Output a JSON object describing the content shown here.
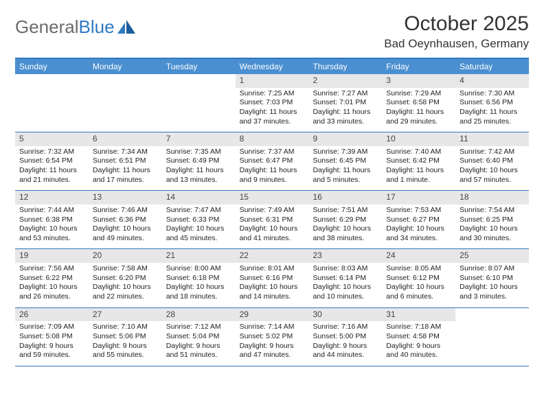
{
  "logo": {
    "text_a": "General",
    "text_b": "Blue"
  },
  "title": "October 2025",
  "location": "Bad Oeynhausen, Germany",
  "colors": {
    "header_band": "#4a8fd0",
    "daynum_bg": "#e7e7e7",
    "rule": "#2f78c2",
    "logo_gray": "#6b6b6b",
    "logo_blue": "#2f78c2",
    "text": "#222222",
    "bg": "#ffffff"
  },
  "day_names": [
    "Sunday",
    "Monday",
    "Tuesday",
    "Wednesday",
    "Thursday",
    "Friday",
    "Saturday"
  ],
  "weeks": [
    [
      {
        "empty": true
      },
      {
        "empty": true
      },
      {
        "empty": true
      },
      {
        "n": "1",
        "sunrise": "7:25 AM",
        "sunset": "7:03 PM",
        "daylight": "11 hours and 37 minutes."
      },
      {
        "n": "2",
        "sunrise": "7:27 AM",
        "sunset": "7:01 PM",
        "daylight": "11 hours and 33 minutes."
      },
      {
        "n": "3",
        "sunrise": "7:29 AM",
        "sunset": "6:58 PM",
        "daylight": "11 hours and 29 minutes."
      },
      {
        "n": "4",
        "sunrise": "7:30 AM",
        "sunset": "6:56 PM",
        "daylight": "11 hours and 25 minutes."
      }
    ],
    [
      {
        "n": "5",
        "sunrise": "7:32 AM",
        "sunset": "6:54 PM",
        "daylight": "11 hours and 21 minutes."
      },
      {
        "n": "6",
        "sunrise": "7:34 AM",
        "sunset": "6:51 PM",
        "daylight": "11 hours and 17 minutes."
      },
      {
        "n": "7",
        "sunrise": "7:35 AM",
        "sunset": "6:49 PM",
        "daylight": "11 hours and 13 minutes."
      },
      {
        "n": "8",
        "sunrise": "7:37 AM",
        "sunset": "6:47 PM",
        "daylight": "11 hours and 9 minutes."
      },
      {
        "n": "9",
        "sunrise": "7:39 AM",
        "sunset": "6:45 PM",
        "daylight": "11 hours and 5 minutes."
      },
      {
        "n": "10",
        "sunrise": "7:40 AM",
        "sunset": "6:42 PM",
        "daylight": "11 hours and 1 minute."
      },
      {
        "n": "11",
        "sunrise": "7:42 AM",
        "sunset": "6:40 PM",
        "daylight": "10 hours and 57 minutes."
      }
    ],
    [
      {
        "n": "12",
        "sunrise": "7:44 AM",
        "sunset": "6:38 PM",
        "daylight": "10 hours and 53 minutes."
      },
      {
        "n": "13",
        "sunrise": "7:46 AM",
        "sunset": "6:36 PM",
        "daylight": "10 hours and 49 minutes."
      },
      {
        "n": "14",
        "sunrise": "7:47 AM",
        "sunset": "6:33 PM",
        "daylight": "10 hours and 45 minutes."
      },
      {
        "n": "15",
        "sunrise": "7:49 AM",
        "sunset": "6:31 PM",
        "daylight": "10 hours and 41 minutes."
      },
      {
        "n": "16",
        "sunrise": "7:51 AM",
        "sunset": "6:29 PM",
        "daylight": "10 hours and 38 minutes."
      },
      {
        "n": "17",
        "sunrise": "7:53 AM",
        "sunset": "6:27 PM",
        "daylight": "10 hours and 34 minutes."
      },
      {
        "n": "18",
        "sunrise": "7:54 AM",
        "sunset": "6:25 PM",
        "daylight": "10 hours and 30 minutes."
      }
    ],
    [
      {
        "n": "19",
        "sunrise": "7:56 AM",
        "sunset": "6:22 PM",
        "daylight": "10 hours and 26 minutes."
      },
      {
        "n": "20",
        "sunrise": "7:58 AM",
        "sunset": "6:20 PM",
        "daylight": "10 hours and 22 minutes."
      },
      {
        "n": "21",
        "sunrise": "8:00 AM",
        "sunset": "6:18 PM",
        "daylight": "10 hours and 18 minutes."
      },
      {
        "n": "22",
        "sunrise": "8:01 AM",
        "sunset": "6:16 PM",
        "daylight": "10 hours and 14 minutes."
      },
      {
        "n": "23",
        "sunrise": "8:03 AM",
        "sunset": "6:14 PM",
        "daylight": "10 hours and 10 minutes."
      },
      {
        "n": "24",
        "sunrise": "8:05 AM",
        "sunset": "6:12 PM",
        "daylight": "10 hours and 6 minutes."
      },
      {
        "n": "25",
        "sunrise": "8:07 AM",
        "sunset": "6:10 PM",
        "daylight": "10 hours and 3 minutes."
      }
    ],
    [
      {
        "n": "26",
        "sunrise": "7:09 AM",
        "sunset": "5:08 PM",
        "daylight": "9 hours and 59 minutes."
      },
      {
        "n": "27",
        "sunrise": "7:10 AM",
        "sunset": "5:06 PM",
        "daylight": "9 hours and 55 minutes."
      },
      {
        "n": "28",
        "sunrise": "7:12 AM",
        "sunset": "5:04 PM",
        "daylight": "9 hours and 51 minutes."
      },
      {
        "n": "29",
        "sunrise": "7:14 AM",
        "sunset": "5:02 PM",
        "daylight": "9 hours and 47 minutes."
      },
      {
        "n": "30",
        "sunrise": "7:16 AM",
        "sunset": "5:00 PM",
        "daylight": "9 hours and 44 minutes."
      },
      {
        "n": "31",
        "sunrise": "7:18 AM",
        "sunset": "4:58 PM",
        "daylight": "9 hours and 40 minutes."
      },
      {
        "empty": true
      }
    ]
  ],
  "labels": {
    "sunrise": "Sunrise:",
    "sunset": "Sunset:",
    "daylight": "Daylight:"
  }
}
